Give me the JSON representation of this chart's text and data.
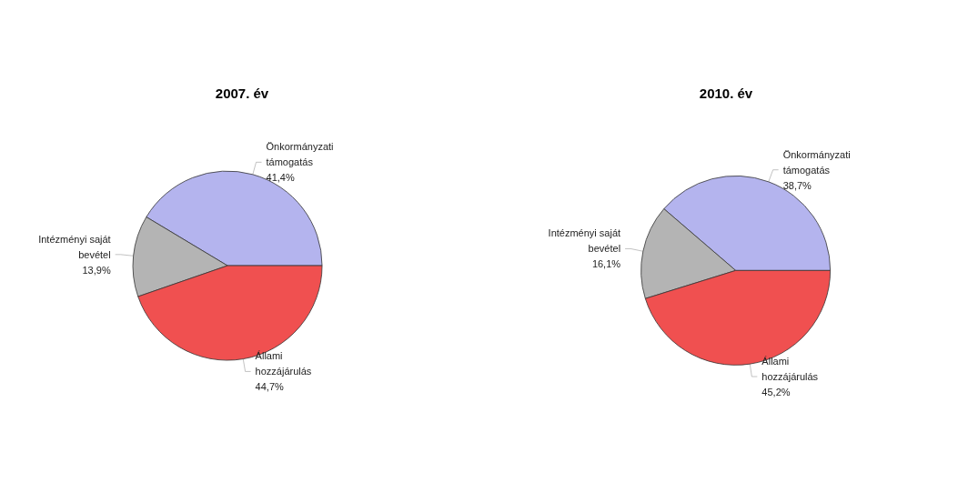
{
  "chart_data": [
    {
      "type": "pie",
      "title": "2007. év",
      "categories": [
        "Önkormányzati támogatás",
        "Intézményi saját bevétel",
        "Állami hozzájárulás"
      ],
      "values": [
        41.4,
        13.9,
        44.7
      ],
      "colors": [
        "#b4b4ee",
        "#b4b4b4",
        "#f05050"
      ],
      "value_labels": [
        "41,4%",
        "13,9%",
        "44,7%"
      ],
      "legend": false
    },
    {
      "type": "pie",
      "title": "2010. év",
      "categories": [
        "Önkormányzati támogatás",
        "Intézményi saját bevétel",
        "Állami hozzájárulás"
      ],
      "values": [
        38.7,
        16.1,
        45.2
      ],
      "colors": [
        "#b4b4ee",
        "#b4b4b4",
        "#f05050"
      ],
      "value_labels": [
        "38,7%",
        "16,1%",
        "45,2%"
      ],
      "legend": false
    }
  ]
}
